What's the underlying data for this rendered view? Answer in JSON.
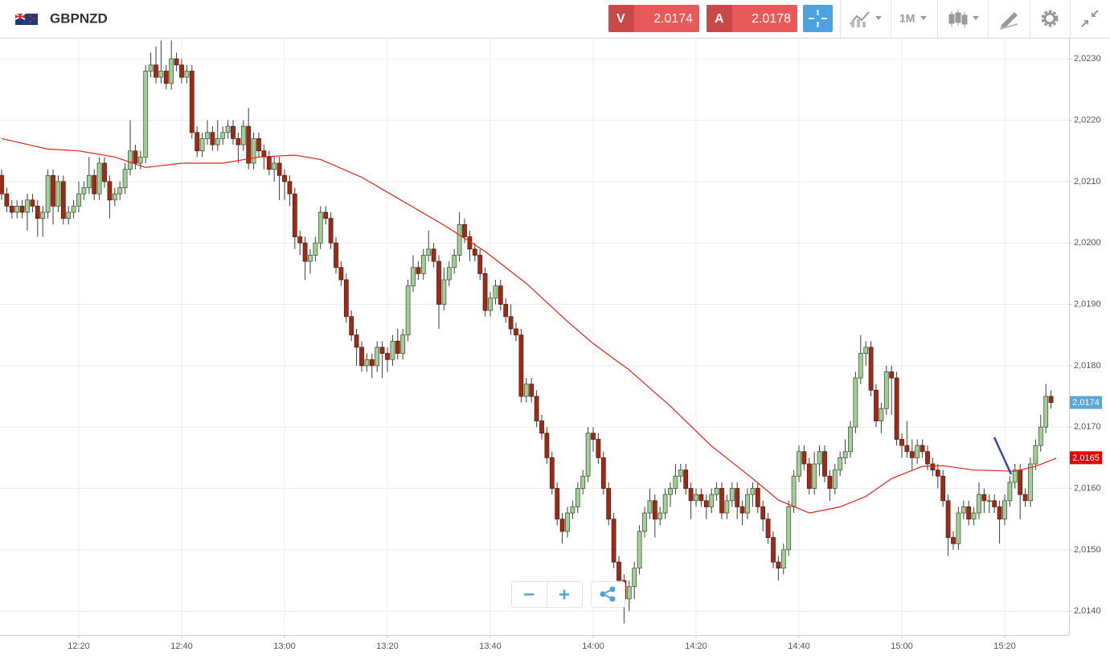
{
  "toolbar": {
    "symbol": "GBPNZD",
    "sell_label": "V",
    "sell_price": "2.0174",
    "buy_label": "A",
    "buy_price": "2.0178",
    "timeframe": "1M"
  },
  "chart_data": {
    "type": "candlestick",
    "xlim": [
      724.6875,
      932.5
    ],
    "ylim": [
      2.01361,
      2.02333
    ],
    "grid": true,
    "xticks": [
      {
        "value": 740,
        "label": "12:20"
      },
      {
        "value": 760,
        "label": "12:40"
      },
      {
        "value": 780,
        "label": "13:00"
      },
      {
        "value": 800,
        "label": "13:20"
      },
      {
        "value": 820,
        "label": "13:40"
      },
      {
        "value": 840,
        "label": "14:00"
      },
      {
        "value": 860,
        "label": "14:20"
      },
      {
        "value": 880,
        "label": "14:40"
      },
      {
        "value": 900,
        "label": "15:00"
      },
      {
        "value": 920,
        "label": "15:20"
      }
    ],
    "yticks": [
      {
        "value": 2.014,
        "label": "2,0140"
      },
      {
        "value": 2.015,
        "label": "2,0150"
      },
      {
        "value": 2.016,
        "label": "2,0160"
      },
      {
        "value": 2.017,
        "label": "2,0170"
      },
      {
        "value": 2.018,
        "label": "2,0180"
      },
      {
        "value": 2.019,
        "label": "2,0190"
      },
      {
        "value": 2.02,
        "label": "2,0200"
      },
      {
        "value": 2.021,
        "label": "2,0210"
      },
      {
        "value": 2.022,
        "label": "2,0220"
      },
      {
        "value": 2.023,
        "label": "2,0230"
      }
    ],
    "candles": {
      "up_color": "#a5cf98",
      "down_color": "#9e2b17",
      "x": [
        725,
        726,
        727,
        728,
        729,
        730,
        731,
        732,
        733,
        734,
        735,
        736,
        737,
        738,
        739,
        740,
        741,
        742,
        743,
        744,
        745,
        746,
        747,
        748,
        749,
        750,
        751,
        752,
        753,
        754,
        755,
        756,
        757,
        758,
        759,
        760,
        761,
        762,
        763,
        764,
        765,
        766,
        767,
        768,
        769,
        770,
        771,
        772,
        773,
        774,
        775,
        776,
        777,
        778,
        779,
        780,
        781,
        782,
        783,
        784,
        785,
        786,
        787,
        788,
        789,
        790,
        791,
        792,
        793,
        794,
        795,
        796,
        797,
        798,
        799,
        800,
        801,
        802,
        803,
        804,
        805,
        806,
        807,
        808,
        809,
        810,
        811,
        812,
        813,
        814,
        815,
        816,
        817,
        818,
        819,
        820,
        821,
        822,
        823,
        824,
        825,
        826,
        827,
        828,
        829,
        830,
        831,
        832,
        833,
        834,
        835,
        836,
        837,
        838,
        839,
        840,
        841,
        842,
        843,
        844,
        845,
        846,
        847,
        848,
        849,
        850,
        851,
        852,
        853,
        854,
        855,
        856,
        857,
        858,
        859,
        860,
        861,
        862,
        863,
        864,
        865,
        866,
        867,
        868,
        869,
        870,
        871,
        872,
        873,
        874,
        875,
        876,
        877,
        878,
        879,
        880,
        881,
        882,
        883,
        884,
        885,
        886,
        887,
        888,
        889,
        890,
        891,
        892,
        893,
        894,
        895,
        896,
        897,
        898,
        899,
        900,
        901,
        902,
        903,
        904,
        905,
        906,
        907,
        908,
        909,
        910,
        911,
        912,
        913,
        914,
        915,
        916,
        917,
        918,
        919,
        920,
        921,
        922,
        923,
        924,
        925,
        926,
        927,
        928,
        929
      ],
      "open": [
        2.0211,
        2.0208,
        2.0206,
        2.0205,
        2.0206,
        2.0205,
        2.0207,
        2.0206,
        2.0204,
        2.0205,
        2.0211,
        2.0206,
        2.021,
        2.0204,
        2.0205,
        2.0206,
        2.0208,
        2.0209,
        2.0211,
        2.0208,
        2.0213,
        2.021,
        2.0207,
        2.0208,
        2.0209,
        2.0212,
        2.0215,
        2.0213,
        2.0214,
        2.0228,
        2.0229,
        2.0227,
        2.0228,
        2.0226,
        2.023,
        2.0229,
        2.0227,
        2.0228,
        2.0218,
        2.0215,
        2.0217,
        2.0218,
        2.0216,
        2.0217,
        2.0218,
        2.0219,
        2.0217,
        2.0216,
        2.0219,
        2.0213,
        2.0217,
        2.0215,
        2.0214,
        2.0212,
        2.0213,
        2.0211,
        2.021,
        2.0208,
        2.0201,
        2.02,
        2.0197,
        2.0198,
        2.02,
        2.0205,
        2.0204,
        2.02,
        2.0196,
        2.0194,
        2.0188,
        2.0185,
        2.0183,
        2.018,
        2.0181,
        2.018,
        2.0183,
        2.0182,
        2.0181,
        2.0184,
        2.0182,
        2.0185,
        2.0193,
        2.0196,
        2.0195,
        2.0198,
        2.0199,
        2.0197,
        2.019,
        2.0194,
        2.0196,
        2.0198,
        2.0203,
        2.0201,
        2.0199,
        2.0198,
        2.0195,
        2.0189,
        2.0191,
        2.0193,
        2.019,
        2.0188,
        2.0186,
        2.0185,
        2.0175,
        2.0177,
        2.0175,
        2.0171,
        2.0169,
        2.0165,
        2.016,
        2.0155,
        2.0153,
        2.0156,
        2.0157,
        2.016,
        2.0162,
        2.0169,
        2.0168,
        2.0165,
        2.016,
        2.0155,
        2.0148,
        2.0145,
        2.0142,
        2.0144,
        2.0147,
        2.0153,
        2.0156,
        2.0158,
        2.0155,
        2.0156,
        2.0159,
        2.016,
        2.0162,
        2.0163,
        2.016,
        2.0158,
        2.0159,
        2.0158,
        2.0157,
        2.0159,
        2.016,
        2.0156,
        2.0158,
        2.016,
        2.0157,
        2.0156,
        2.0159,
        2.016,
        2.0157,
        2.0155,
        2.0152,
        2.0148,
        2.0147,
        2.015,
        2.0157,
        2.0162,
        2.0166,
        2.0164,
        2.016,
        2.0164,
        2.0166,
        2.0162,
        2.016,
        2.0163,
        2.0165,
        2.0166,
        2.017,
        2.0178,
        2.0182,
        2.0183,
        2.0176,
        2.0171,
        2.0173,
        2.0179,
        2.0178,
        2.0168,
        2.0167,
        2.0166,
        2.0165,
        2.0167,
        2.0166,
        2.0164,
        2.0163,
        2.0162,
        2.0158,
        2.0152,
        2.0151,
        2.0156,
        2.0157,
        2.0155,
        2.0156,
        2.0159,
        2.0158,
        2.0158,
        2.0157,
        2.0155,
        2.0158,
        2.0161,
        2.0163,
        2.0159,
        2.0158,
        2.0164,
        2.0167,
        2.017,
        2.0175
      ],
      "high": [
        2.0212,
        2.0209,
        2.0207,
        2.0207,
        2.0207,
        2.0208,
        2.0208,
        2.0207,
        2.0206,
        2.0212,
        2.0212,
        2.0211,
        2.0211,
        2.0206,
        2.0207,
        2.021,
        2.021,
        2.0214,
        2.0212,
        2.0214,
        2.0214,
        2.0211,
        2.0209,
        2.021,
        2.0213,
        2.022,
        2.0216,
        2.0215,
        2.0229,
        2.0231,
        2.0232,
        2.0233,
        2.0229,
        2.0233,
        2.0231,
        2.023,
        2.0229,
        2.0229,
        2.0219,
        2.0218,
        2.022,
        2.0219,
        2.022,
        2.0219,
        2.022,
        2.022,
        2.0218,
        2.022,
        2.0222,
        2.0218,
        2.0218,
        2.0216,
        2.0215,
        2.0214,
        2.0214,
        2.0212,
        2.0211,
        2.0209,
        2.0202,
        2.0201,
        2.0199,
        2.0201,
        2.0206,
        2.0206,
        2.0205,
        2.0201,
        2.0197,
        2.0195,
        2.0189,
        2.0186,
        2.0184,
        2.0182,
        2.0182,
        2.0184,
        2.0184,
        2.0183,
        2.0185,
        2.0186,
        2.0186,
        2.0194,
        2.0198,
        2.0197,
        2.0199,
        2.0202,
        2.02,
        2.0198,
        2.0196,
        2.0197,
        2.0199,
        2.0205,
        2.0204,
        2.0202,
        2.02,
        2.0199,
        2.0196,
        2.0192,
        2.0194,
        2.0194,
        2.0191,
        2.019,
        2.0187,
        2.0186,
        2.0178,
        2.0178,
        2.0176,
        2.0172,
        2.017,
        2.0166,
        2.0161,
        2.0156,
        2.0157,
        2.0158,
        2.0161,
        2.0163,
        2.017,
        2.017,
        2.0169,
        2.0166,
        2.0161,
        2.0156,
        2.0149,
        2.0146,
        2.0145,
        2.0148,
        2.0154,
        2.0157,
        2.016,
        2.0159,
        2.0157,
        2.016,
        2.0161,
        2.0164,
        2.0164,
        2.0164,
        2.0161,
        2.016,
        2.016,
        2.0159,
        2.016,
        2.0161,
        2.0161,
        2.0159,
        2.0161,
        2.0161,
        2.0158,
        2.016,
        2.0161,
        2.0161,
        2.0158,
        2.0156,
        2.0153,
        2.0149,
        2.0151,
        2.0158,
        2.0163,
        2.0167,
        2.0167,
        2.0165,
        2.0166,
        2.0167,
        2.0167,
        2.0163,
        2.0164,
        2.0166,
        2.0168,
        2.0171,
        2.0179,
        2.0185,
        2.0184,
        2.0184,
        2.0177,
        2.0174,
        2.018,
        2.018,
        2.0179,
        2.0169,
        2.0171,
        2.0168,
        2.0168,
        2.0168,
        2.0167,
        2.0165,
        2.0164,
        2.0163,
        2.0159,
        2.0153,
        2.0157,
        2.0158,
        2.0158,
        2.0157,
        2.0161,
        2.016,
        2.0159,
        2.0159,
        2.0158,
        2.0159,
        2.0162,
        2.0164,
        2.0164,
        2.016,
        2.0165,
        2.0168,
        2.0172,
        2.0177,
        2.0176
      ],
      "low": [
        2.0207,
        2.0205,
        2.0204,
        2.0204,
        2.0204,
        2.0202,
        2.0205,
        2.0201,
        2.0201,
        2.0204,
        2.0203,
        2.0205,
        2.0203,
        2.0203,
        2.0204,
        2.0205,
        2.0207,
        2.0208,
        2.0207,
        2.0207,
        2.0209,
        2.0204,
        2.0206,
        2.0207,
        2.0208,
        2.0211,
        2.0212,
        2.0212,
        2.0213,
        2.0227,
        2.0226,
        2.0226,
        2.0225,
        2.0225,
        2.0228,
        2.0226,
        2.0226,
        2.0217,
        2.0214,
        2.0214,
        2.0216,
        2.0215,
        2.0215,
        2.0216,
        2.0217,
        2.0216,
        2.0213,
        2.0215,
        2.0212,
        2.0212,
        2.0214,
        2.0212,
        2.0211,
        2.021,
        2.0207,
        2.0207,
        2.0206,
        2.0199,
        2.0198,
        2.0194,
        2.0195,
        2.0197,
        2.0199,
        2.0203,
        2.0199,
        2.0195,
        2.0193,
        2.0187,
        2.0184,
        2.018,
        2.0179,
        2.0179,
        2.0178,
        2.0179,
        2.0178,
        2.0179,
        2.018,
        2.0181,
        2.0181,
        2.0184,
        2.0192,
        2.0194,
        2.0194,
        2.0197,
        2.0196,
        2.0186,
        2.0189,
        2.0193,
        2.0195,
        2.0197,
        2.02,
        2.0197,
        2.0197,
        2.0194,
        2.0188,
        2.0188,
        2.019,
        2.0189,
        2.0187,
        2.0185,
        2.0184,
        2.0174,
        2.0174,
        2.0174,
        2.017,
        2.0168,
        2.0164,
        2.0159,
        2.0154,
        2.0151,
        2.0152,
        2.0155,
        2.0156,
        2.0159,
        2.0161,
        2.0166,
        2.0164,
        2.0159,
        2.0154,
        2.0147,
        2.0143,
        2.0138,
        2.014,
        2.0142,
        2.0146,
        2.0152,
        2.0155,
        2.0152,
        2.0154,
        2.0155,
        2.0157,
        2.0159,
        2.0161,
        2.0159,
        2.0155,
        2.0157,
        2.0157,
        2.0155,
        2.0156,
        2.0158,
        2.0155,
        2.0155,
        2.0157,
        2.0155,
        2.0154,
        2.0155,
        2.0157,
        2.0156,
        2.0153,
        2.0151,
        2.0147,
        2.0145,
        2.0146,
        2.0149,
        2.0156,
        2.0161,
        2.0163,
        2.0159,
        2.0159,
        2.0162,
        2.0161,
        2.0158,
        2.0159,
        2.0162,
        2.0164,
        2.0165,
        2.0169,
        2.0177,
        2.018,
        2.0175,
        2.017,
        2.0169,
        2.0172,
        2.0172,
        2.0167,
        2.0165,
        2.0165,
        2.0163,
        2.0164,
        2.0165,
        2.0163,
        2.0162,
        2.016,
        2.0157,
        2.0149,
        2.015,
        2.015,
        2.0155,
        2.0154,
        2.0154,
        2.0155,
        2.0156,
        2.0156,
        2.0156,
        2.0151,
        2.0154,
        2.0157,
        2.016,
        2.0155,
        2.0157,
        2.0157,
        2.0163,
        2.0166,
        2.0169,
        2.0173
      ],
      "close": [
        2.0208,
        2.0206,
        2.0205,
        2.0206,
        2.0205,
        2.0207,
        2.0206,
        2.0204,
        2.0205,
        2.0211,
        2.0206,
        2.021,
        2.0204,
        2.0205,
        2.0206,
        2.0208,
        2.0209,
        2.0211,
        2.0208,
        2.0213,
        2.021,
        2.0207,
        2.0208,
        2.0209,
        2.0212,
        2.0215,
        2.0213,
        2.0214,
        2.0228,
        2.0229,
        2.0227,
        2.0228,
        2.0226,
        2.023,
        2.0229,
        2.0227,
        2.0228,
        2.0218,
        2.0215,
        2.0217,
        2.0218,
        2.0216,
        2.0217,
        2.0218,
        2.0219,
        2.0217,
        2.0216,
        2.0219,
        2.0213,
        2.0217,
        2.0215,
        2.0214,
        2.0212,
        2.0213,
        2.0211,
        2.021,
        2.0208,
        2.0201,
        2.02,
        2.0197,
        2.0198,
        2.02,
        2.0205,
        2.0204,
        2.02,
        2.0196,
        2.0194,
        2.0188,
        2.0185,
        2.0183,
        2.018,
        2.0181,
        2.018,
        2.0183,
        2.0182,
        2.0181,
        2.0184,
        2.0182,
        2.0185,
        2.0193,
        2.0196,
        2.0195,
        2.0198,
        2.0199,
        2.0197,
        2.019,
        2.0194,
        2.0196,
        2.0198,
        2.0203,
        2.0201,
        2.0199,
        2.0198,
        2.0195,
        2.0189,
        2.0191,
        2.0193,
        2.019,
        2.0188,
        2.0186,
        2.0185,
        2.0175,
        2.0177,
        2.0175,
        2.0171,
        2.0169,
        2.0165,
        2.016,
        2.0155,
        2.0153,
        2.0156,
        2.0157,
        2.016,
        2.0162,
        2.0169,
        2.0168,
        2.0165,
        2.016,
        2.0155,
        2.0148,
        2.0145,
        2.0142,
        2.0144,
        2.0147,
        2.0153,
        2.0156,
        2.0158,
        2.0155,
        2.0156,
        2.0159,
        2.016,
        2.0162,
        2.0163,
        2.016,
        2.0158,
        2.0159,
        2.0158,
        2.0157,
        2.0159,
        2.016,
        2.0156,
        2.0158,
        2.016,
        2.0157,
        2.0156,
        2.0159,
        2.016,
        2.0157,
        2.0155,
        2.0152,
        2.0148,
        2.0147,
        2.015,
        2.0157,
        2.0162,
        2.0166,
        2.0164,
        2.016,
        2.0164,
        2.0166,
        2.0162,
        2.016,
        2.0163,
        2.0165,
        2.0166,
        2.017,
        2.0178,
        2.0182,
        2.0183,
        2.0176,
        2.0171,
        2.0173,
        2.0179,
        2.0178,
        2.0168,
        2.0167,
        2.0166,
        2.0165,
        2.0167,
        2.0166,
        2.0164,
        2.0163,
        2.0162,
        2.0158,
        2.0152,
        2.0151,
        2.0156,
        2.0157,
        2.0155,
        2.0156,
        2.0159,
        2.0158,
        2.0158,
        2.0157,
        2.0155,
        2.0158,
        2.0161,
        2.0163,
        2.0159,
        2.0158,
        2.0164,
        2.0167,
        2.017,
        2.0175,
        2.0174
      ]
    },
    "ma": {
      "color": "#e2231a",
      "x": [
        725,
        734,
        740,
        747,
        753,
        760,
        768,
        775,
        782,
        787,
        795,
        803,
        811,
        819,
        827,
        835,
        840,
        847,
        855,
        863,
        871,
        876,
        882,
        888,
        893,
        898,
        904,
        908,
        914,
        922,
        926,
        930
      ],
      "values": [
        2.0217,
        2.02153,
        2.0215,
        2.0214,
        2.02123,
        2.0213,
        2.0213,
        2.0214,
        2.02143,
        2.02136,
        2.02107,
        2.02068,
        2.02029,
        2.01986,
        2.01934,
        2.01872,
        2.01836,
        2.01793,
        2.01734,
        2.01669,
        2.01616,
        2.01581,
        2.0156,
        2.0157,
        2.01587,
        2.01616,
        2.01636,
        2.01637,
        2.0163,
        2.01628,
        2.01636,
        2.01649
      ]
    },
    "last_price": {
      "value": 2.0174,
      "label": "2,0174",
      "color": "#5aa8d8"
    },
    "ma_price": {
      "value": 2.0165,
      "label": "2,0165",
      "color": "#e00000"
    }
  }
}
